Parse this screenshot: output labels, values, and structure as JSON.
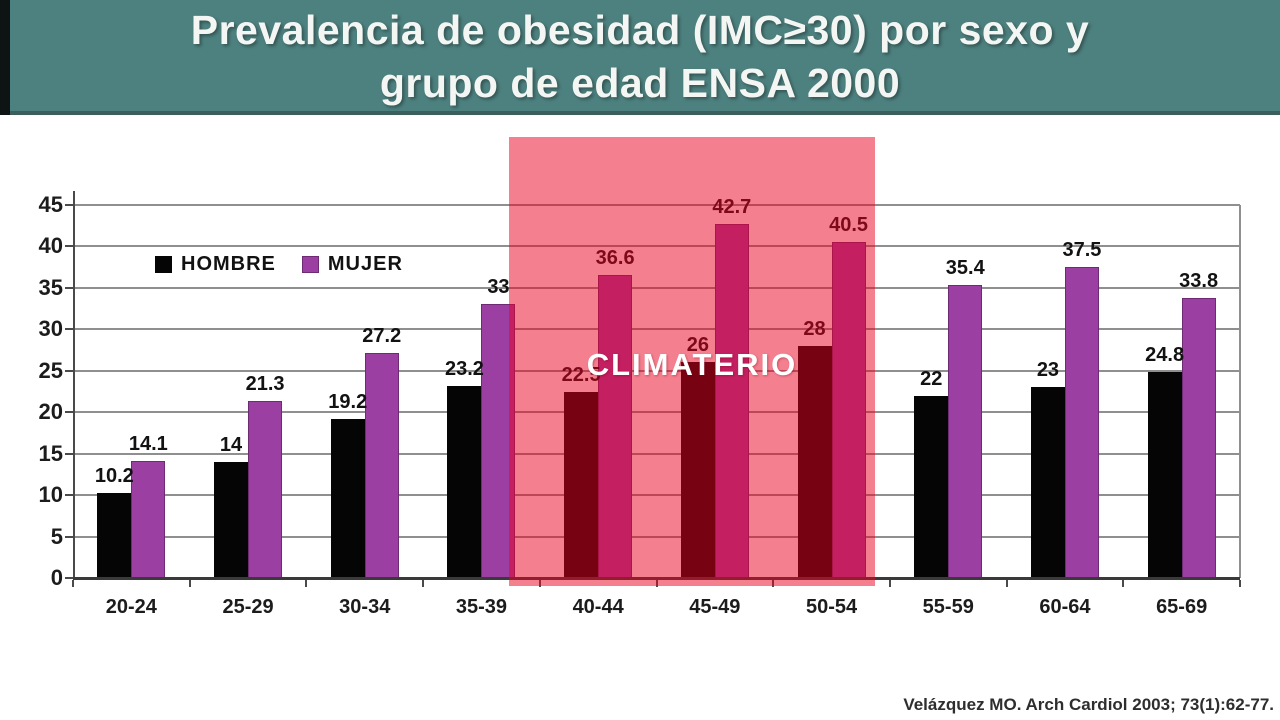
{
  "header": {
    "title_line1": "Prevalencia de obesidad (IMC≥30) por sexo y",
    "title_line2": "grupo de edad ENSA 2000"
  },
  "chart_data": {
    "type": "bar",
    "title": "Prevalencia de obesidad (IMC≥30) por sexo y grupo de edad ENSA 2000",
    "categories": [
      "20-24",
      "25-29",
      "30-34",
      "35-39",
      "40-44",
      "45-49",
      "50-54",
      "55-59",
      "60-64",
      "65-69"
    ],
    "series": [
      {
        "name": "HOMBRE",
        "color": "#050505",
        "values": [
          10.2,
          14,
          19.2,
          23.2,
          22.5,
          26,
          28,
          22,
          23,
          24.8
        ],
        "labels": [
          "10.2",
          "14",
          "19.2",
          "23.2",
          "22.5",
          "26",
          "28",
          "22",
          "23",
          "24.8"
        ]
      },
      {
        "name": "MUJER",
        "color": "#9C3FA2",
        "values": [
          14.1,
          21.3,
          27.2,
          33,
          36.6,
          42.7,
          40.5,
          35.4,
          37.5,
          33.8
        ],
        "labels": [
          "14.1",
          "21.3",
          "27.2",
          "33",
          "36.6",
          "42.7",
          "40.5",
          "35.4",
          "37.5",
          "33.8"
        ]
      }
    ],
    "ylim": [
      0,
      45
    ],
    "yticks": [
      0,
      5,
      10,
      15,
      20,
      25,
      30,
      35,
      40,
      45
    ],
    "grid": true,
    "legend_position": "inside-top-left",
    "highlight": {
      "label": "CLIMATERIO",
      "from_category": "40-44",
      "to_category": "50-54",
      "color": "rgba(233,0,31,0.5)"
    }
  },
  "colors": {
    "header_bg": "#4D817F",
    "hombre_bar": "#050505",
    "mujer_bar": "#9C3FA2",
    "highlight_overlay": "rgba(233,0,31,0.5)"
  },
  "citation": "Velázquez MO. Arch Cardiol 2003; 73(1):62-77."
}
